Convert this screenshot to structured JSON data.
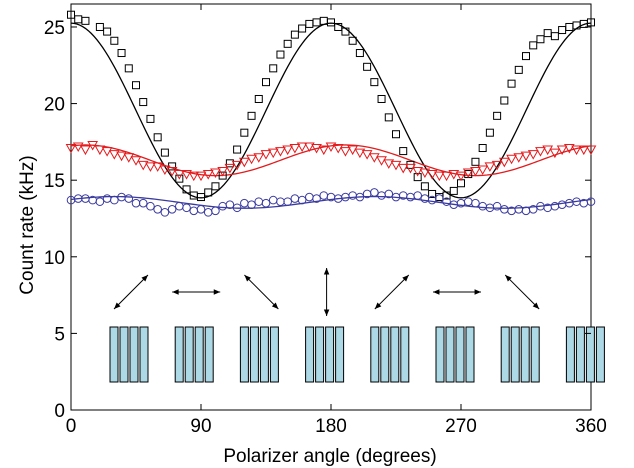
{
  "chart_data": {
    "type": "scatter",
    "title": "",
    "xlabel": "Polarizer angle (degrees)",
    "ylabel": "Count rate (kHz)",
    "xlim": [
      0,
      360
    ],
    "ylim": [
      0,
      26.5
    ],
    "xticks": [
      0,
      90,
      180,
      270,
      360
    ],
    "yticks": [
      0,
      5,
      10,
      15,
      20,
      25
    ],
    "grid": false,
    "legend": "none",
    "series": [
      {
        "marker": "square",
        "color": "#000000",
        "fit": {
          "mean": 19.55,
          "amplitude": 5.7,
          "phase_deg": 180
        },
        "x": [
          0,
          5,
          10,
          20,
          25,
          30,
          35,
          40,
          45,
          50,
          55,
          60,
          65,
          70,
          75,
          80,
          85,
          90,
          95,
          100,
          105,
          110,
          115,
          120,
          125,
          130,
          135,
          140,
          145,
          150,
          155,
          160,
          165,
          170,
          175,
          180,
          185,
          190,
          195,
          200,
          205,
          210,
          215,
          220,
          225,
          230,
          235,
          240,
          245,
          250,
          255,
          260,
          265,
          270,
          275,
          280,
          285,
          290,
          295,
          300,
          305,
          310,
          315,
          320,
          325,
          330,
          335,
          340,
          345,
          350,
          355,
          360
        ],
        "y": [
          25.8,
          25.5,
          25.4,
          25.0,
          24.7,
          24.1,
          23.3,
          22.3,
          21.2,
          20.1,
          19.0,
          17.8,
          16.8,
          15.9,
          15.1,
          14.4,
          14.0,
          13.9,
          14.2,
          14.6,
          15.3,
          16.1,
          17.0,
          18.1,
          19.2,
          20.3,
          21.4,
          22.3,
          23.2,
          23.9,
          24.5,
          24.9,
          25.2,
          25.3,
          25.4,
          25.3,
          25.0,
          24.7,
          24.1,
          23.3,
          22.4,
          21.4,
          20.3,
          19.1,
          18.0,
          16.9,
          16.0,
          15.2,
          14.6,
          14.1,
          13.9,
          14.0,
          14.3,
          14.8,
          15.4,
          16.2,
          17.1,
          18.1,
          19.2,
          20.2,
          21.3,
          22.2,
          23.1,
          23.8,
          24.2,
          24.6,
          24.4,
          24.8,
          25.0,
          25.1,
          25.2,
          25.3
        ]
      },
      {
        "marker": "triangle-down",
        "color": "#e41a1c",
        "fit": {
          "mean": 16.3,
          "amplitude": 1.0,
          "phase_deg": 190
        },
        "x": [
          0,
          5,
          10,
          15,
          20,
          25,
          30,
          35,
          40,
          45,
          50,
          55,
          60,
          65,
          70,
          75,
          80,
          85,
          90,
          95,
          100,
          105,
          110,
          115,
          120,
          125,
          130,
          135,
          140,
          145,
          150,
          155,
          160,
          165,
          170,
          175,
          180,
          185,
          190,
          195,
          200,
          205,
          210,
          215,
          220,
          225,
          230,
          235,
          240,
          245,
          250,
          255,
          260,
          265,
          270,
          275,
          280,
          285,
          290,
          295,
          300,
          305,
          310,
          315,
          320,
          325,
          330,
          335,
          340,
          345,
          350,
          355,
          360
        ],
        "y": [
          17.1,
          17.2,
          17.0,
          17.3,
          17.0,
          16.9,
          16.7,
          16.6,
          16.5,
          16.3,
          16.0,
          15.9,
          15.9,
          15.7,
          15.6,
          15.4,
          15.4,
          15.3,
          15.3,
          15.4,
          15.5,
          15.6,
          15.8,
          16.0,
          16.2,
          16.4,
          16.5,
          16.7,
          16.8,
          16.9,
          17.0,
          17.1,
          17.2,
          17.2,
          17.1,
          17.0,
          17.2,
          17.1,
          16.9,
          17.0,
          16.8,
          16.7,
          16.5,
          16.3,
          16.1,
          16.0,
          15.8,
          15.8,
          15.6,
          15.5,
          15.4,
          15.3,
          15.3,
          15.4,
          15.3,
          15.5,
          15.6,
          15.7,
          15.9,
          16.0,
          16.2,
          16.4,
          16.5,
          16.6,
          16.7,
          16.9,
          17.0,
          16.8,
          17.0,
          17.1,
          17.0,
          17.0,
          17.0
        ]
      },
      {
        "marker": "circle",
        "color": "#3a3aa0",
        "fit": {
          "mean": 13.55,
          "amplitude": 0.38,
          "phase_deg": 210
        },
        "x": [
          0,
          5,
          10,
          15,
          20,
          25,
          30,
          35,
          40,
          45,
          50,
          55,
          60,
          65,
          70,
          75,
          80,
          85,
          90,
          95,
          100,
          105,
          110,
          115,
          120,
          125,
          130,
          135,
          140,
          145,
          150,
          155,
          160,
          165,
          170,
          175,
          180,
          185,
          190,
          195,
          200,
          205,
          210,
          215,
          220,
          225,
          230,
          235,
          240,
          245,
          250,
          255,
          260,
          265,
          270,
          275,
          280,
          285,
          290,
          295,
          300,
          305,
          310,
          315,
          320,
          325,
          330,
          335,
          340,
          345,
          350,
          355,
          360
        ],
        "y": [
          13.7,
          13.8,
          13.8,
          13.7,
          13.6,
          13.8,
          13.7,
          13.9,
          13.8,
          13.5,
          13.5,
          13.3,
          13.1,
          12.9,
          13.1,
          13.3,
          13.2,
          13.0,
          13.1,
          12.9,
          13.0,
          13.3,
          13.4,
          13.2,
          13.5,
          13.4,
          13.6,
          13.5,
          13.7,
          13.6,
          13.6,
          13.8,
          13.7,
          13.9,
          13.8,
          14.0,
          13.9,
          13.8,
          13.9,
          14.0,
          13.9,
          14.1,
          14.2,
          14.0,
          14.1,
          13.9,
          14.0,
          13.9,
          14.0,
          13.8,
          13.7,
          13.8,
          13.6,
          13.4,
          13.5,
          13.6,
          13.5,
          13.3,
          13.2,
          13.3,
          13.1,
          13.0,
          13.1,
          13.0,
          13.1,
          13.3,
          13.2,
          13.3,
          13.4,
          13.5,
          13.6,
          13.5,
          13.6
        ]
      }
    ],
    "inset": {
      "groups": 8,
      "bars_per_group": 4,
      "bar_fill": "#add8e6",
      "bar_stroke": "#000000",
      "arrow_angles_deg": [
        45,
        0,
        135,
        90,
        45,
        0,
        135
      ]
    }
  }
}
